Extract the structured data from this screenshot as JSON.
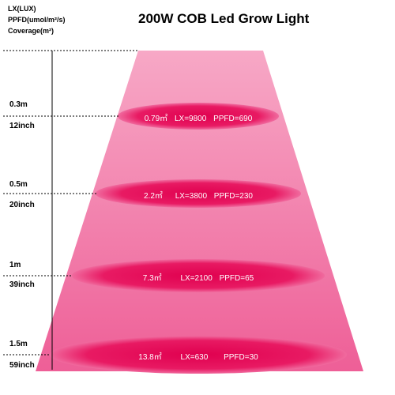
{
  "legend": {
    "line1": "LX(LUX)",
    "line2": "PPFD(umol/m²/s)",
    "line3": "Coverage(m²)"
  },
  "title": "200W COB Led Grow Light",
  "levels": [
    {
      "meters": "0.3m",
      "inches": "12inch",
      "coverage": "0.79㎡",
      "lx": "LX=9800",
      "ppfd": "PPFD=690"
    },
    {
      "meters": "0.5m",
      "inches": "20inch",
      "coverage": "2.2㎡",
      "lx": "LX=3800",
      "ppfd": "PPFD=230"
    },
    {
      "meters": "1m",
      "inches": "39inch",
      "coverage": "7.3㎡",
      "lx": "LX=2100",
      "ppfd": "PPFD=65"
    },
    {
      "meters": "1.5m",
      "inches": "59inch",
      "coverage": "13.8㎡",
      "lx": "LX=630",
      "ppfd": "PPFD=30"
    }
  ],
  "colors": {
    "cone": "#ef6aa0",
    "ellipse": "#e8135f",
    "text": "#ffffff"
  }
}
